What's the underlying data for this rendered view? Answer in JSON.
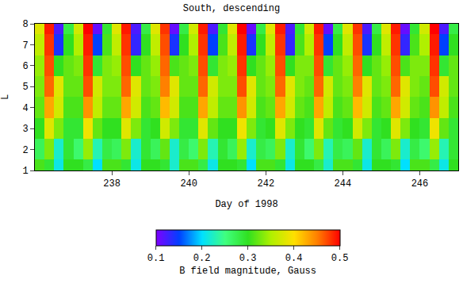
{
  "chart_data": {
    "type": "heatmap",
    "title": "South, descending",
    "x_label": "Day of 1998",
    "y_label": "L",
    "x": [
      236.125,
      236.375,
      236.625,
      236.875,
      237.125,
      237.375,
      237.625,
      237.875,
      238.125,
      238.375,
      238.625,
      238.875,
      239.125,
      239.375,
      239.625,
      239.875,
      240.125,
      240.375,
      240.625,
      240.875,
      241.125,
      241.375,
      241.625,
      241.875,
      242.125,
      242.375,
      242.625,
      242.875,
      243.125,
      243.375,
      243.625,
      243.875,
      244.125,
      244.375,
      244.625,
      244.875,
      245.125,
      245.375,
      245.625,
      245.875,
      246.125,
      246.375,
      246.625,
      246.875
    ],
    "y": [
      1,
      2,
      3,
      4,
      5,
      6,
      7,
      8
    ],
    "z": [
      [
        0.31,
        0.29,
        0.21,
        0.3,
        0.3,
        0.28,
        0.2,
        0.31,
        0.31,
        0.29,
        0.21,
        0.3,
        0.3,
        0.29,
        0.22,
        0.31,
        0.31,
        0.28,
        0.21,
        0.3,
        0.3,
        0.29,
        0.2,
        0.31,
        0.31,
        0.29,
        0.21,
        0.3,
        0.3,
        0.28,
        0.22,
        0.31,
        0.31,
        0.29,
        0.21,
        0.3,
        0.3,
        0.29,
        0.2,
        0.31,
        0.31,
        0.28,
        0.21,
        0.3
      ],
      [
        0.27,
        0.33,
        0.22,
        0.29,
        0.26,
        0.34,
        0.23,
        0.28,
        0.27,
        0.33,
        0.22,
        0.29,
        0.27,
        0.32,
        0.22,
        0.28,
        0.26,
        0.33,
        0.23,
        0.29,
        0.27,
        0.34,
        0.22,
        0.28,
        0.27,
        0.33,
        0.22,
        0.29,
        0.26,
        0.33,
        0.23,
        0.28,
        0.27,
        0.32,
        0.22,
        0.29,
        0.27,
        0.33,
        0.22,
        0.28,
        0.26,
        0.34,
        0.23,
        0.29
      ],
      [
        0.3,
        0.38,
        0.33,
        0.29,
        0.29,
        0.39,
        0.32,
        0.3,
        0.3,
        0.38,
        0.33,
        0.29,
        0.3,
        0.37,
        0.33,
        0.29,
        0.29,
        0.38,
        0.32,
        0.3,
        0.3,
        0.39,
        0.33,
        0.29,
        0.3,
        0.38,
        0.33,
        0.3,
        0.29,
        0.38,
        0.32,
        0.29,
        0.3,
        0.37,
        0.33,
        0.29,
        0.3,
        0.38,
        0.33,
        0.3,
        0.29,
        0.39,
        0.32,
        0.29
      ],
      [
        0.32,
        0.43,
        0.37,
        0.31,
        0.31,
        0.44,
        0.36,
        0.32,
        0.32,
        0.43,
        0.37,
        0.31,
        0.32,
        0.42,
        0.37,
        0.31,
        0.31,
        0.43,
        0.36,
        0.32,
        0.32,
        0.44,
        0.37,
        0.31,
        0.32,
        0.43,
        0.37,
        0.32,
        0.31,
        0.43,
        0.36,
        0.31,
        0.32,
        0.42,
        0.37,
        0.31,
        0.32,
        0.43,
        0.37,
        0.32,
        0.31,
        0.44,
        0.36,
        0.31
      ],
      [
        0.33,
        0.46,
        0.38,
        0.32,
        0.32,
        0.47,
        0.37,
        0.33,
        0.33,
        0.46,
        0.38,
        0.32,
        0.33,
        0.45,
        0.38,
        0.32,
        0.32,
        0.46,
        0.37,
        0.33,
        0.33,
        0.47,
        0.38,
        0.32,
        0.33,
        0.46,
        0.38,
        0.33,
        0.32,
        0.46,
        0.37,
        0.32,
        0.33,
        0.45,
        0.38,
        0.32,
        0.33,
        0.46,
        0.38,
        0.33,
        0.32,
        0.47,
        0.37,
        0.32
      ],
      [
        0.34,
        0.47,
        0.3,
        0.32,
        0.33,
        0.48,
        0.29,
        0.33,
        0.34,
        0.47,
        0.3,
        0.32,
        0.34,
        0.46,
        0.31,
        0.32,
        0.33,
        0.47,
        0.29,
        0.33,
        0.34,
        0.48,
        0.3,
        0.32,
        0.34,
        0.47,
        0.3,
        0.33,
        0.33,
        0.47,
        0.29,
        0.32,
        0.34,
        0.46,
        0.3,
        0.32,
        0.34,
        0.47,
        0.31,
        0.33,
        0.33,
        0.48,
        0.29,
        0.32
      ],
      [
        0.36,
        0.48,
        0.14,
        0.3,
        0.35,
        0.49,
        0.15,
        0.31,
        0.36,
        0.48,
        0.13,
        0.3,
        0.36,
        0.47,
        0.14,
        0.3,
        0.35,
        0.48,
        0.15,
        0.31,
        0.36,
        0.49,
        0.14,
        0.3,
        0.36,
        0.48,
        0.13,
        0.31,
        0.35,
        0.48,
        0.15,
        0.3,
        0.36,
        0.47,
        0.14,
        0.3,
        0.36,
        0.48,
        0.13,
        0.31,
        0.35,
        0.49,
        0.15,
        0.3
      ],
      [
        0.38,
        0.49,
        0.12,
        0.28,
        0.37,
        0.5,
        0.11,
        0.29,
        0.38,
        0.49,
        0.12,
        0.28,
        0.38,
        0.48,
        0.11,
        0.28,
        0.37,
        0.49,
        0.12,
        0.29,
        0.38,
        0.5,
        0.11,
        0.28,
        0.38,
        0.49,
        0.12,
        0.29,
        0.37,
        0.49,
        0.11,
        0.28,
        0.38,
        0.48,
        0.12,
        0.28,
        0.38,
        0.49,
        0.11,
        0.29,
        0.37,
        0.5,
        0.12,
        0.28
      ]
    ],
    "xlim": [
      236,
      247
    ],
    "ylim": [
      1,
      8
    ],
    "xticks": [
      238,
      240,
      242,
      244,
      246
    ],
    "yticks": [
      1,
      2,
      3,
      4,
      5,
      6,
      7,
      8
    ],
    "colorbar": {
      "label": "B field magnitude, Gauss",
      "range": [
        0.1,
        0.5
      ],
      "ticks": [
        0.1,
        0.2,
        0.3,
        0.4,
        0.5
      ]
    }
  }
}
